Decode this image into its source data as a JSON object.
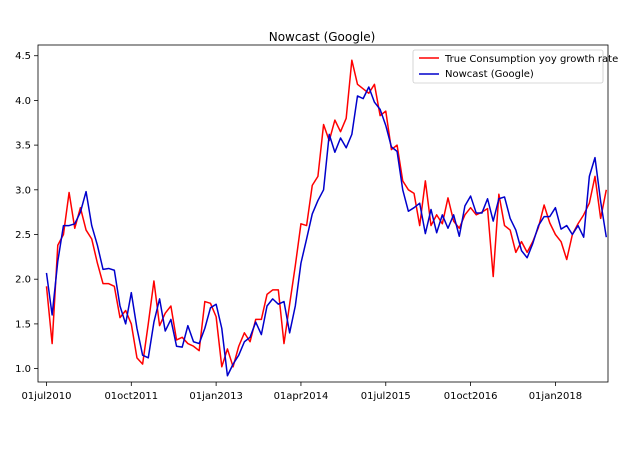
{
  "chart_data": {
    "type": "line",
    "title": "Nowcast (Google)",
    "xlabel": "",
    "ylabel": "",
    "grid": false,
    "legend_position": "top-right",
    "x_start": "2010-07",
    "x_frequency": "monthly",
    "xlim_months": [
      -1.5,
      99.3
    ],
    "ylim": [
      0.85,
      4.62
    ],
    "x_ticks": [
      {
        "label": "01jul2010",
        "month_index": 0
      },
      {
        "label": "01oct2011",
        "month_index": 15
      },
      {
        "label": "01jan2013",
        "month_index": 30
      },
      {
        "label": "01apr2014",
        "month_index": 45
      },
      {
        "label": "01jul2015",
        "month_index": 60
      },
      {
        "label": "01oct2016",
        "month_index": 75
      },
      {
        "label": "01jan2018",
        "month_index": 90
      }
    ],
    "y_ticks": [
      1.0,
      1.5,
      2.0,
      2.5,
      3.0,
      3.5,
      4.0,
      4.5
    ],
    "y_tick_labels": [
      "1.0",
      "1.5",
      "2.0",
      "2.5",
      "3.0",
      "3.5",
      "4.0",
      "4.5"
    ],
    "series": [
      {
        "name": "True Consumption yoy growth rate",
        "color": "#ff0000",
        "values": [
          1.92,
          1.28,
          2.38,
          2.5,
          2.97,
          2.57,
          2.8,
          2.55,
          2.45,
          2.18,
          1.95,
          1.95,
          1.92,
          1.57,
          1.65,
          1.5,
          1.12,
          1.05,
          1.5,
          1.98,
          1.48,
          1.62,
          1.7,
          1.32,
          1.35,
          1.28,
          1.25,
          1.2,
          1.75,
          1.73,
          1.58,
          1.02,
          1.22,
          1.02,
          1.25,
          1.4,
          1.3,
          1.55,
          1.55,
          1.83,
          1.88,
          1.88,
          1.28,
          1.72,
          2.15,
          2.62,
          2.6,
          3.05,
          3.15,
          3.73,
          3.55,
          3.78,
          3.65,
          3.8,
          4.45,
          4.18,
          4.13,
          4.08,
          4.18,
          3.83,
          3.88,
          3.45,
          3.5,
          3.1,
          3.0,
          2.96,
          2.6,
          3.1,
          2.6,
          2.72,
          2.62,
          2.91,
          2.65,
          2.57,
          2.72,
          2.8,
          2.72,
          2.75,
          2.79,
          2.03,
          2.95,
          2.6,
          2.55,
          2.3,
          2.42,
          2.3,
          2.42,
          2.58,
          2.83,
          2.63,
          2.5,
          2.42,
          2.22,
          2.5,
          2.62,
          2.72,
          2.85,
          3.15,
          2.68,
          3.0
        ]
      },
      {
        "name": "Nowcast (Google)",
        "color": "#0000cc",
        "values": [
          2.07,
          1.6,
          2.2,
          2.6,
          2.6,
          2.62,
          2.75,
          2.98,
          2.6,
          2.38,
          2.11,
          2.12,
          2.1,
          1.7,
          1.5,
          1.85,
          1.45,
          1.15,
          1.12,
          1.52,
          1.78,
          1.42,
          1.55,
          1.25,
          1.24,
          1.48,
          1.3,
          1.28,
          1.45,
          1.68,
          1.72,
          1.45,
          0.92,
          1.05,
          1.15,
          1.3,
          1.35,
          1.52,
          1.38,
          1.7,
          1.78,
          1.72,
          1.75,
          1.4,
          1.7,
          2.18,
          2.45,
          2.73,
          2.88,
          3.0,
          3.62,
          3.42,
          3.58,
          3.47,
          3.62,
          4.05,
          4.02,
          4.15,
          3.98,
          3.9,
          3.72,
          3.48,
          3.43,
          3.0,
          2.76,
          2.8,
          2.85,
          2.51,
          2.78,
          2.52,
          2.72,
          2.57,
          2.72,
          2.48,
          2.82,
          2.93,
          2.74,
          2.74,
          2.9,
          2.65,
          2.9,
          2.92,
          2.68,
          2.55,
          2.32,
          2.24,
          2.4,
          2.6,
          2.7,
          2.7,
          2.8,
          2.56,
          2.6,
          2.5,
          2.6,
          2.47,
          3.15,
          3.36,
          2.87,
          2.47
        ]
      }
    ]
  }
}
